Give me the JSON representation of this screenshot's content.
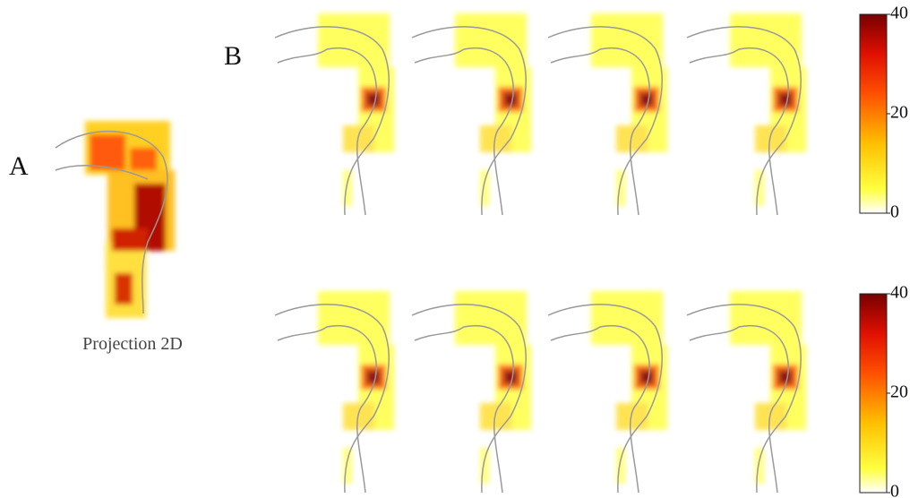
{
  "panel_a": {
    "label": "A",
    "caption": "Projection 2D"
  },
  "panel_b": {
    "label": "B"
  },
  "colorbars": [
    {
      "lim": [
        0,
        40
      ],
      "ticks": [
        0,
        20,
        40
      ]
    },
    {
      "lim": [
        0,
        40
      ],
      "ticks": [
        0,
        20,
        40
      ]
    }
  ]
}
